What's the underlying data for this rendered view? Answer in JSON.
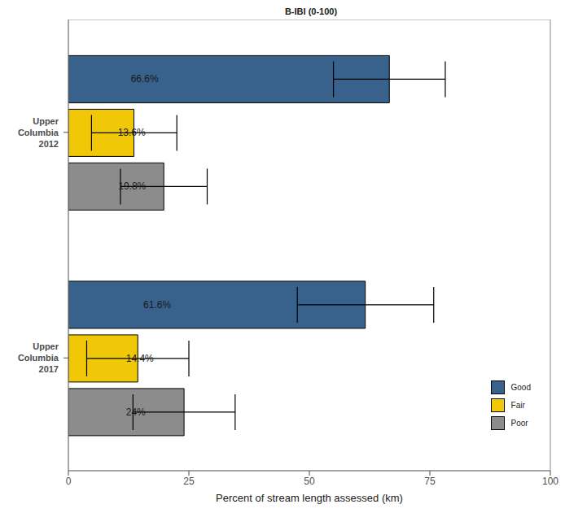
{
  "chart_data": {
    "type": "bar",
    "title": "B-IBI (0-100)",
    "orientation": "horizontal",
    "categories": [
      "Upper Columbia 2012",
      "Upper Columbia 2017"
    ],
    "series": [
      {
        "name": "Good",
        "color": "#38618c",
        "values": [
          66.6,
          61.6
        ],
        "value_labels": [
          "66.6%",
          "61.6%"
        ],
        "error_low": [
          55.0,
          47.5
        ],
        "error_high": [
          78.2,
          75.8
        ]
      },
      {
        "name": "Fair",
        "color": "#f0c808",
        "values": [
          13.6,
          14.4
        ],
        "value_labels": [
          "13.6%",
          "14.4%"
        ],
        "error_low": [
          4.8,
          3.8
        ],
        "error_high": [
          22.5,
          25.0
        ]
      },
      {
        "name": "Poor",
        "color": "#8c8c8c",
        "values": [
          19.8,
          24
        ],
        "value_labels": [
          "19.8%",
          "24%"
        ],
        "error_low": [
          10.8,
          13.4
        ],
        "error_high": [
          28.8,
          34.6
        ]
      }
    ],
    "x_label": "Percent of stream length assessed (km)",
    "xlim": [
      0,
      100
    ],
    "xticks": [
      0,
      25,
      50,
      75,
      100
    ],
    "grid": false,
    "legend": "lower right",
    "data_labels": true
  }
}
